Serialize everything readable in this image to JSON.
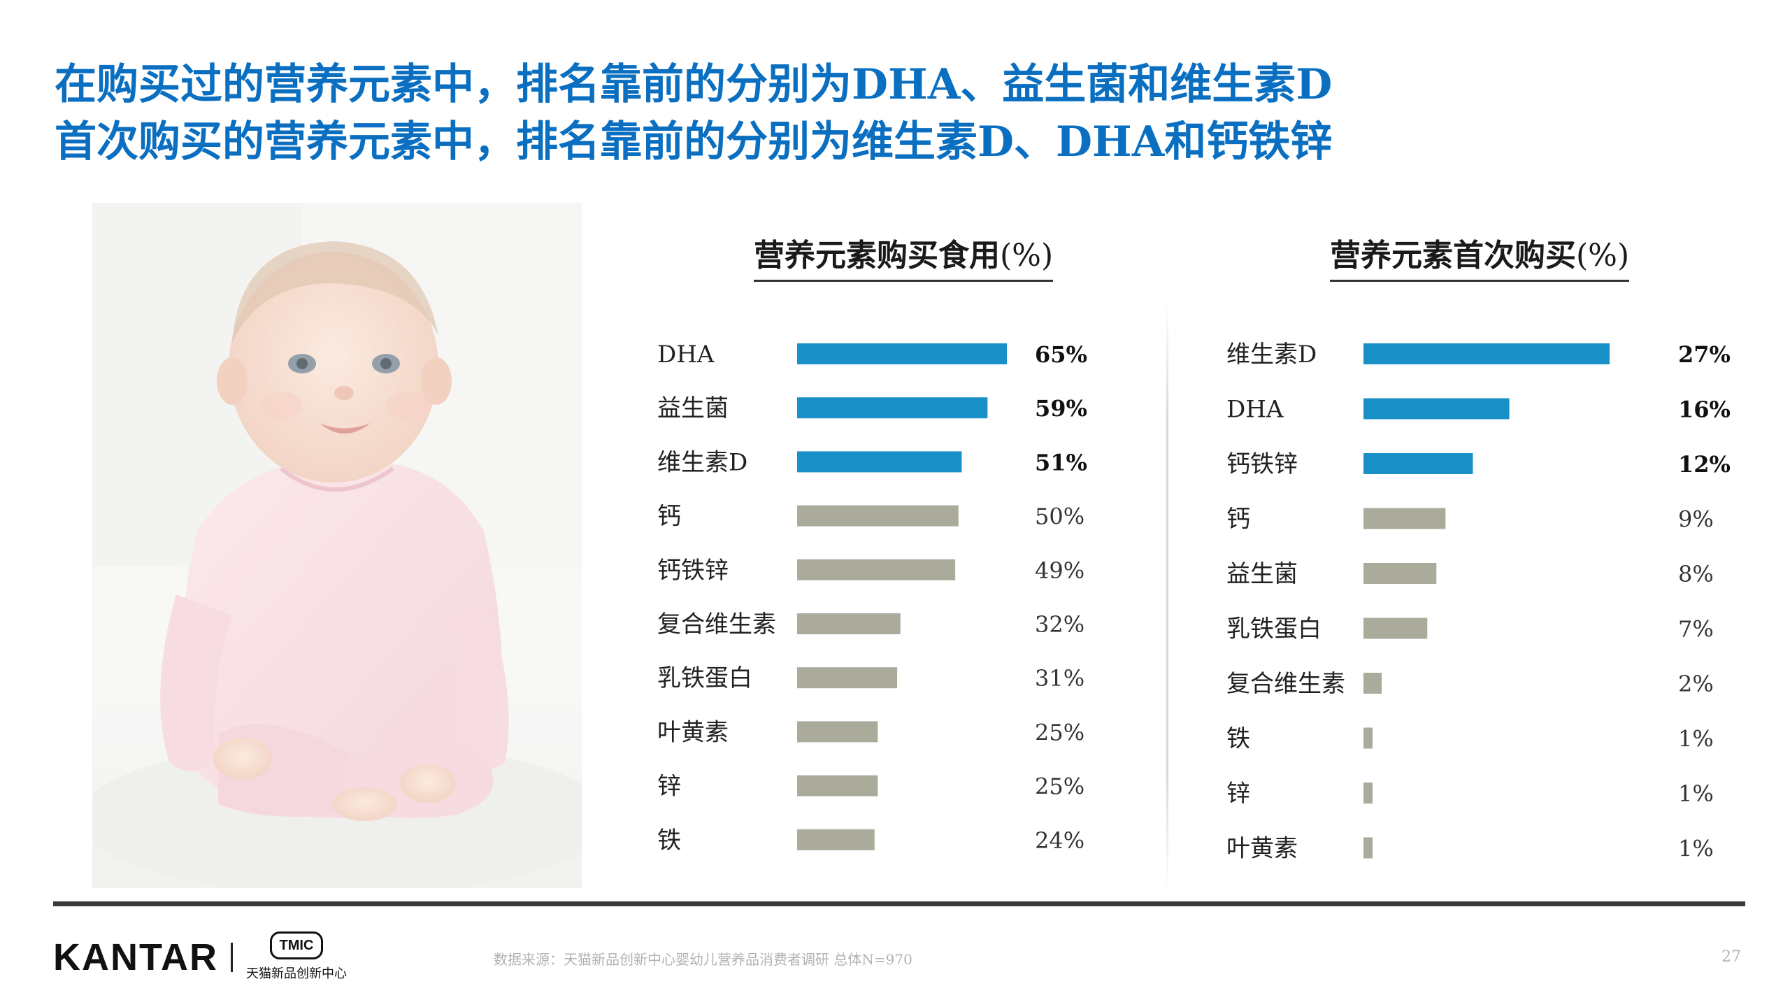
{
  "headline": {
    "line1": "在购买过的营养元素中，排名靠前的分别为DHA、益生菌和维生素D",
    "line2": "首次购买的营养元素中，排名靠前的分别为维生素D、DHA和钙铁锌"
  },
  "colors": {
    "highlight": "#1990c6",
    "other": "#abab9c",
    "headline": "#0a6fc0"
  },
  "chart_data": [
    {
      "type": "bar",
      "orientation": "horizontal",
      "title": "营养元素购买食用",
      "unit": "(%)",
      "categories": [
        "DHA",
        "益生菌",
        "维生素D",
        "钙",
        "钙铁锌",
        "复合维生素",
        "乳铁蛋白",
        "叶黄素",
        "锌",
        "铁"
      ],
      "values": [
        65,
        59,
        51,
        50,
        49,
        32,
        31,
        25,
        25,
        24
      ],
      "value_labels": [
        "65%",
        "59%",
        "51%",
        "50%",
        "49%",
        "32%",
        "31%",
        "25%",
        "25%",
        "24%"
      ],
      "highlight_count": 3
    },
    {
      "type": "bar",
      "orientation": "horizontal",
      "title": "营养元素首次购买",
      "unit": "(%)",
      "categories": [
        "维生素D",
        "DHA",
        "钙铁锌",
        "钙",
        "益生菌",
        "乳铁蛋白",
        "复合维生素",
        "铁",
        "锌",
        "叶黄素"
      ],
      "values": [
        27,
        16,
        12,
        9,
        8,
        7,
        2,
        1,
        1,
        1
      ],
      "value_labels": [
        "27%",
        "16%",
        "12%",
        "9%",
        "8%",
        "7%",
        "2%",
        "1%",
        "1%",
        "1%"
      ],
      "highlight_count": 3
    }
  ],
  "footer": {
    "kantar": "KANTAR",
    "tmic_badge": "TMIC",
    "tmic_name": "天猫新品创新中心",
    "source": "数据来源：天猫新品创新中心婴幼儿营养品消费者调研   总体N=970",
    "page": "27"
  }
}
